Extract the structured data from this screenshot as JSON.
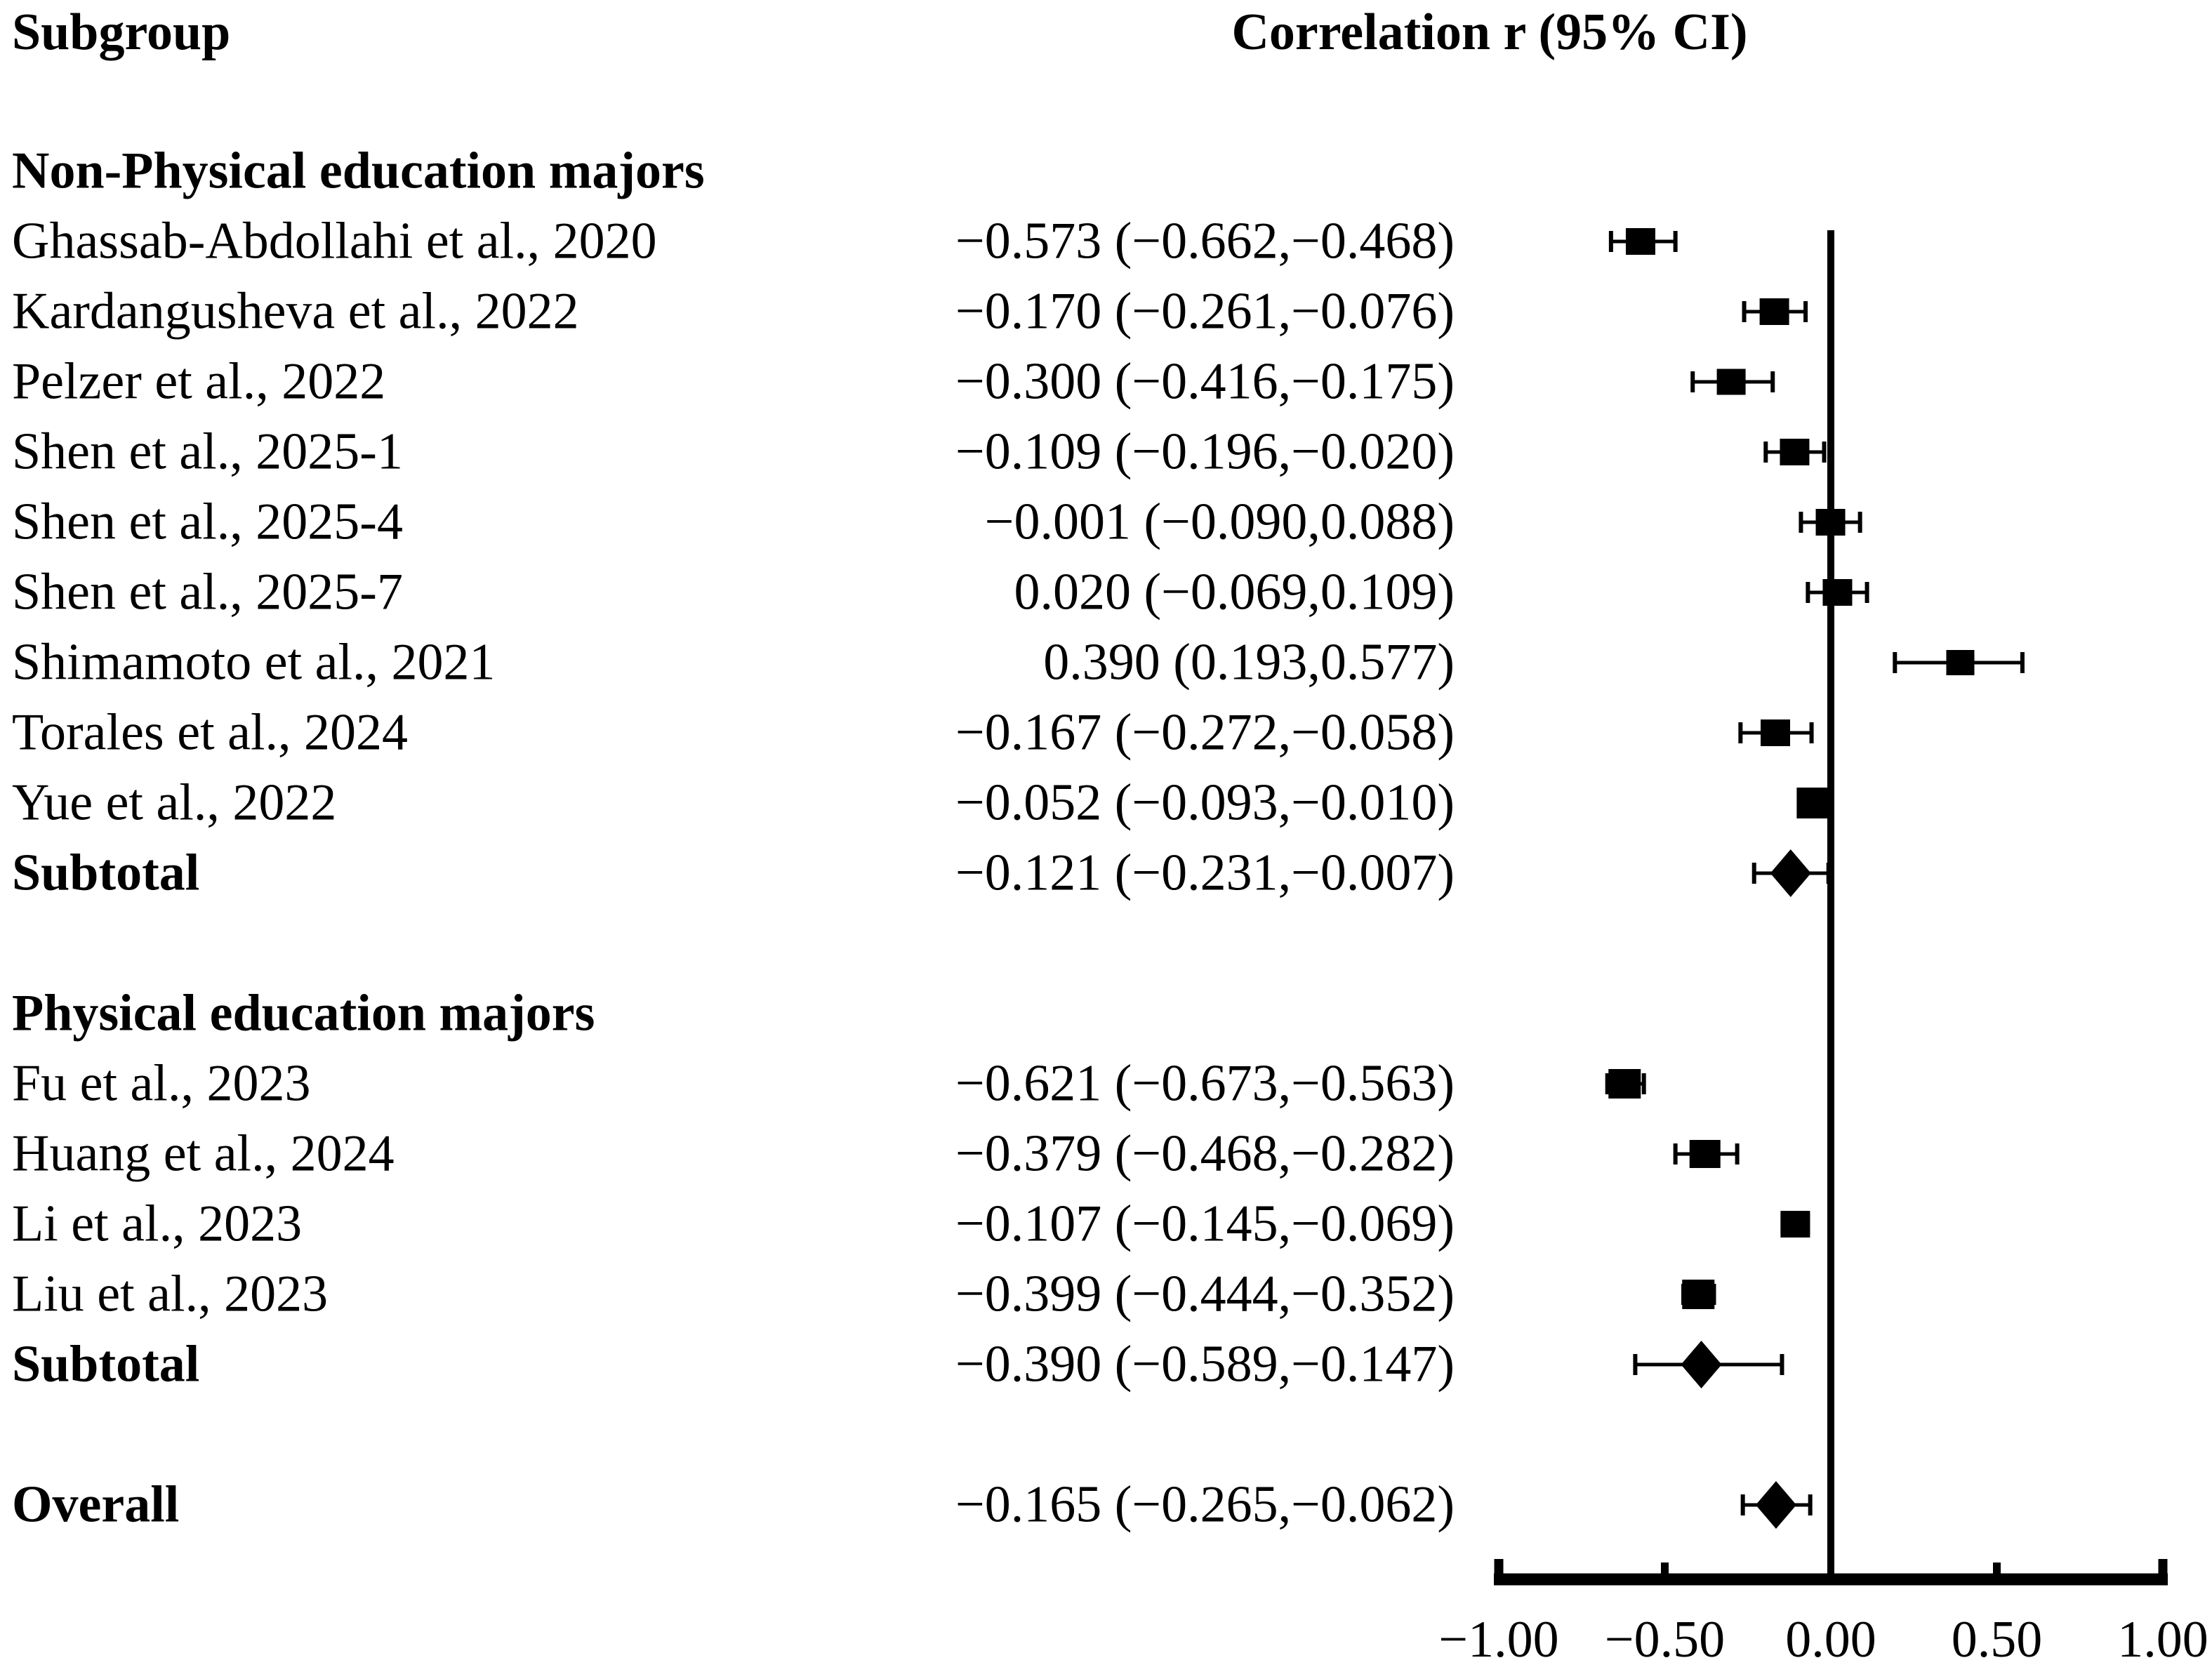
{
  "headers": {
    "left": "Subgroup",
    "right": "Correlation r (95% CI)"
  },
  "colors": {
    "ink": "#000000",
    "background": "#ffffff"
  },
  "chart_data": {
    "type": "forest",
    "title": "Correlation r (95% CI)",
    "xlim": [
      -1.0,
      1.0
    ],
    "x_ticks": [
      -1.0,
      -0.5,
      0.0,
      0.5,
      1.0
    ],
    "x_tick_labels": [
      "−1.00",
      "−0.50",
      "0.00",
      "0.50",
      "1.00"
    ],
    "zero_line_x": 0.0,
    "legend_position": "none",
    "grid": false,
    "columns": {
      "subgroup": "Subgroup",
      "correlation": "Correlation r (95% CI)"
    },
    "rows": [
      {
        "kind": "group",
        "slot": 0,
        "label": "Non-Physical education majors",
        "text": "",
        "r": null,
        "lo": null,
        "hi": null,
        "marker": "none",
        "size": 0
      },
      {
        "kind": "study",
        "slot": 1,
        "label": "Ghassab-Abdollahi et al., 2020",
        "text": "−0.573 (−0.662,−0.468)",
        "r": -0.573,
        "lo": -0.662,
        "hi": -0.468,
        "marker": "square",
        "size": 38
      },
      {
        "kind": "study",
        "slot": 2,
        "label": "Kardangusheva et al., 2022",
        "text": "−0.170 (−0.261,−0.076)",
        "r": -0.17,
        "lo": -0.261,
        "hi": -0.076,
        "marker": "square",
        "size": 38
      },
      {
        "kind": "study",
        "slot": 3,
        "label": "Pelzer et al., 2022",
        "text": "−0.300 (−0.416,−0.175)",
        "r": -0.3,
        "lo": -0.416,
        "hi": -0.175,
        "marker": "square",
        "size": 37
      },
      {
        "kind": "study",
        "slot": 4,
        "label": "Shen et al., 2025-1",
        "text": "−0.109 (−0.196,−0.020)",
        "r": -0.109,
        "lo": -0.196,
        "hi": -0.02,
        "marker": "square",
        "size": 38
      },
      {
        "kind": "study",
        "slot": 5,
        "label": "Shen et al., 2025-4",
        "text": "−0.001 (−0.090,0.088)",
        "r": -0.001,
        "lo": -0.09,
        "hi": 0.088,
        "marker": "square",
        "size": 38
      },
      {
        "kind": "study",
        "slot": 6,
        "label": "Shen et al., 2025-7",
        "text": "0.020 (−0.069,0.109)",
        "r": 0.02,
        "lo": -0.069,
        "hi": 0.109,
        "marker": "square",
        "size": 38
      },
      {
        "kind": "study",
        "slot": 7,
        "label": "Shimamoto et al., 2021",
        "text": "0.390 (0.193,0.577)",
        "r": 0.39,
        "lo": 0.193,
        "hi": 0.577,
        "marker": "square",
        "size": 36
      },
      {
        "kind": "study",
        "slot": 8,
        "label": "Torales et al., 2024",
        "text": "−0.167 (−0.272,−0.058)",
        "r": -0.167,
        "lo": -0.272,
        "hi": -0.058,
        "marker": "square",
        "size": 38
      },
      {
        "kind": "study",
        "slot": 9,
        "label": "Yue et al., 2022",
        "text": "−0.052 (−0.093,−0.010)",
        "r": -0.052,
        "lo": -0.093,
        "hi": -0.01,
        "marker": "square",
        "size": 44
      },
      {
        "kind": "subtotal",
        "slot": 10,
        "label": "Subtotal",
        "text": "−0.121 (−0.231,−0.007)",
        "r": -0.121,
        "lo": -0.231,
        "hi": -0.007,
        "marker": "diamond",
        "size": 0
      },
      {
        "kind": "group",
        "slot": 12,
        "label": "Physical education majors",
        "text": "",
        "r": null,
        "lo": null,
        "hi": null,
        "marker": "none",
        "size": 0
      },
      {
        "kind": "study",
        "slot": 13,
        "label": "Fu et al., 2023",
        "text": "−0.621 (−0.673,−0.563)",
        "r": -0.621,
        "lo": -0.673,
        "hi": -0.563,
        "marker": "square",
        "size": 42
      },
      {
        "kind": "study",
        "slot": 14,
        "label": "Huang et al., 2024",
        "text": "−0.379 (−0.468,−0.282)",
        "r": -0.379,
        "lo": -0.468,
        "hi": -0.282,
        "marker": "square",
        "size": 40
      },
      {
        "kind": "study",
        "slot": 15,
        "label": "Li et al., 2023",
        "text": "−0.107 (−0.145,−0.069)",
        "r": -0.107,
        "lo": -0.145,
        "hi": -0.069,
        "marker": "square",
        "size": 38
      },
      {
        "kind": "study",
        "slot": 16,
        "label": "Liu et al., 2023",
        "text": "−0.399 (−0.444,−0.352)",
        "r": -0.399,
        "lo": -0.444,
        "hi": -0.352,
        "marker": "square",
        "size": 42
      },
      {
        "kind": "subtotal",
        "slot": 17,
        "label": "Subtotal",
        "text": "−0.390 (−0.589,−0.147)",
        "r": -0.39,
        "lo": -0.589,
        "hi": -0.147,
        "marker": "diamond",
        "size": 0
      },
      {
        "kind": "overall",
        "slot": 19,
        "label": "Overall",
        "text": "−0.165 (−0.265,−0.062)",
        "r": -0.165,
        "lo": -0.265,
        "hi": -0.062,
        "marker": "diamond",
        "size": 0
      }
    ]
  }
}
